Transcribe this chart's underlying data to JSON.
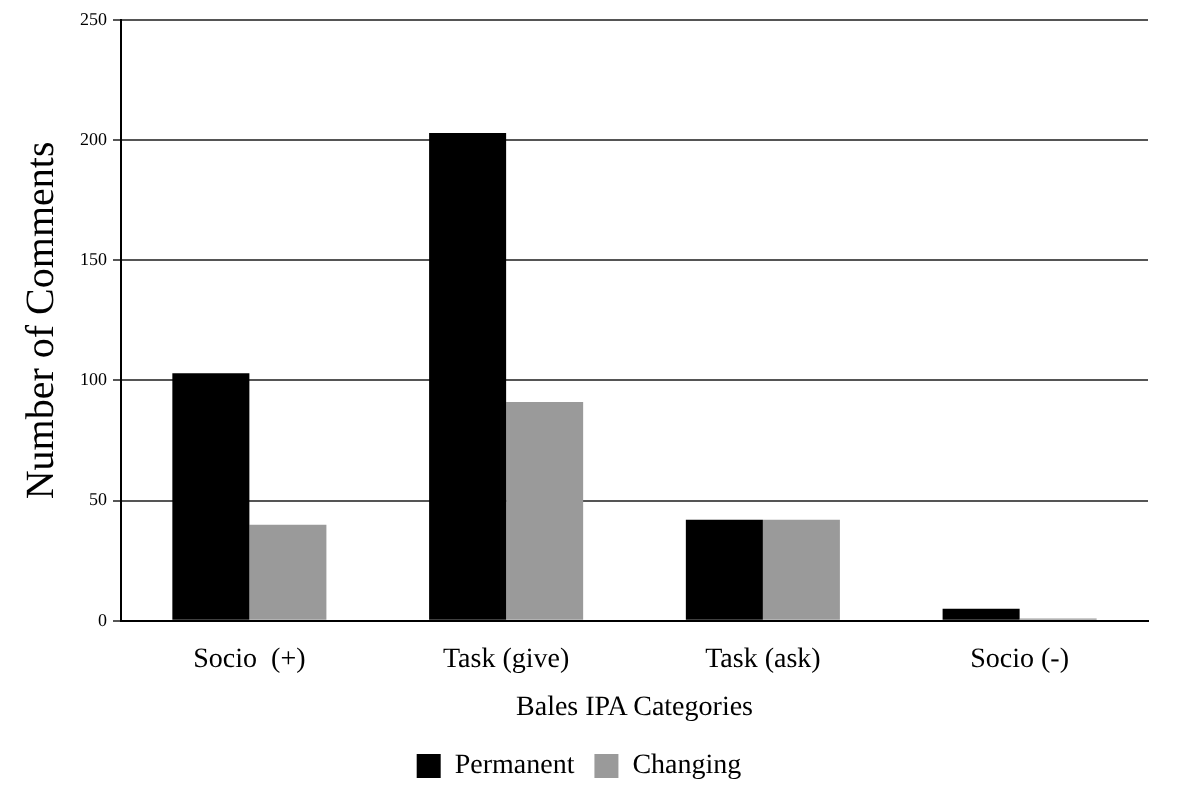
{
  "chart_data": {
    "type": "bar",
    "xlabel": "Bales IPA Categories",
    "ylabel": "Number of Comments",
    "categories": [
      "Socio  (+)",
      "Task (give)",
      "Task (ask)",
      "Socio (-)"
    ],
    "series": [
      {
        "name": "Permanent",
        "color": "#000000",
        "values": [
          103,
          203,
          42,
          5
        ]
      },
      {
        "name": "Changing",
        "color": "#9a9a9a",
        "values": [
          40,
          91,
          42,
          1
        ]
      }
    ],
    "ylim": [
      0,
      250
    ],
    "yticks": [
      0,
      50,
      100,
      150,
      200,
      250
    ],
    "grid": "y",
    "legend": "bottom"
  }
}
